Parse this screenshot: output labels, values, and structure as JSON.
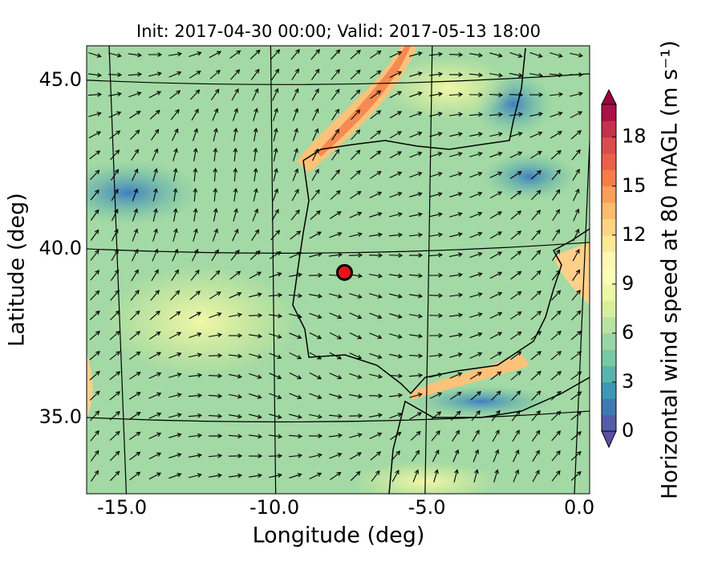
{
  "chart_data": {
    "type": "map",
    "title": "Init: 2017-04-30 00:00; Valid: 2017-05-13 18:00",
    "x_label": "Longitude (deg)",
    "y_label": "Latitude (deg)",
    "xlim": [
      -16.16,
      0.34
    ],
    "ylim": [
      32.74,
      46.02
    ],
    "xticks": [
      {
        "value": -15,
        "label": "-15.0"
      },
      {
        "value": -10,
        "label": "-10.0"
      },
      {
        "value": -5,
        "label": "-5.0"
      },
      {
        "value": 0,
        "label": "0.0"
      }
    ],
    "yticks": [
      {
        "value": 35,
        "label": "35.0"
      },
      {
        "value": 40,
        "label": "40.0"
      },
      {
        "value": 45,
        "label": "45.0"
      }
    ],
    "grid": true,
    "colorbar": {
      "label": "Horizontal wind speed at 80 mAGL (m s⁻¹)",
      "lim": [
        0,
        20
      ],
      "ticks": [
        0,
        3,
        6,
        9,
        12,
        15,
        18
      ],
      "colors": [
        "#5e4fa2",
        "#3288bd",
        "#66c2a5",
        "#abdda4",
        "#e6f598",
        "#ffffbf",
        "#fee08b",
        "#fdae61",
        "#f46d43",
        "#d53e4f",
        "#9e0142"
      ]
    },
    "marker": {
      "lon": -7.7,
      "lat": 39.3,
      "color": "#e8141a"
    }
  }
}
